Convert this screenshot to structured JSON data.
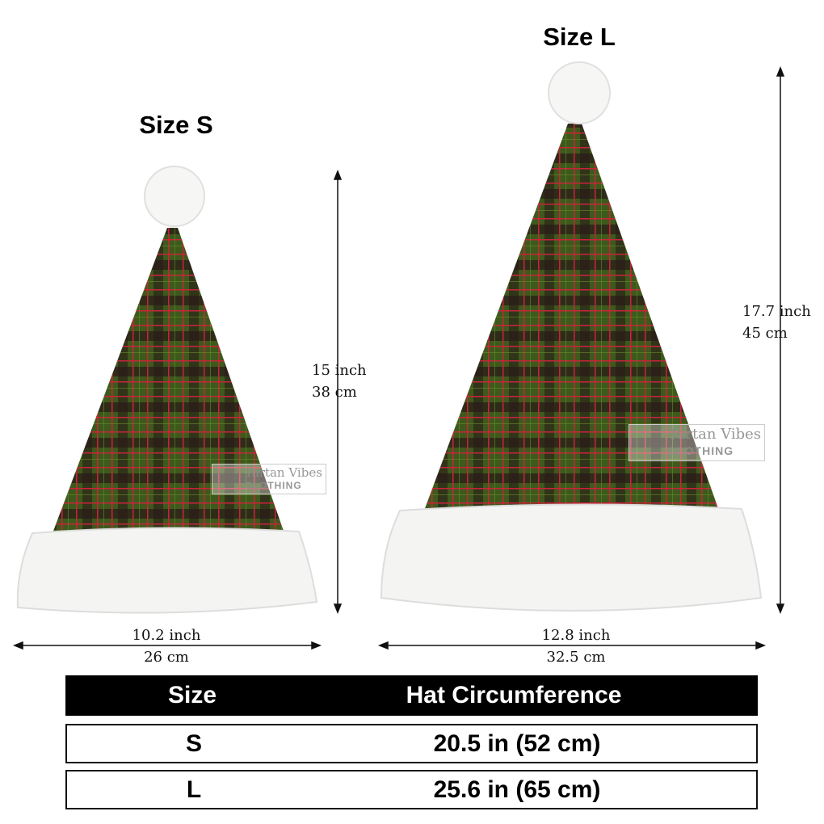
{
  "sizes": {
    "s": {
      "title": "Size S",
      "height_in": "15 inch",
      "height_cm": "38 cm",
      "width_in": "10.2 inch",
      "width_cm": "26 cm"
    },
    "l": {
      "title": "Size L",
      "height_in": "17.7 inch",
      "height_cm": "45 cm",
      "width_in": "12.8 inch",
      "width_cm": "32.5 cm"
    }
  },
  "watermark": {
    "brand": "Tartan Vibes",
    "sub": "CLOTHING"
  },
  "table": {
    "headers": [
      "Size",
      "Hat Circumference"
    ],
    "rows": [
      [
        "S",
        "20.5 in (52 cm)"
      ],
      [
        "L",
        "25.6 in (65 cm)"
      ]
    ]
  },
  "colors": {
    "tartan_green": "#3d5a1c",
    "tartan_red": "#c8243a",
    "tartan_dark": "#2a1a18",
    "fur": "#f4f4f2"
  }
}
